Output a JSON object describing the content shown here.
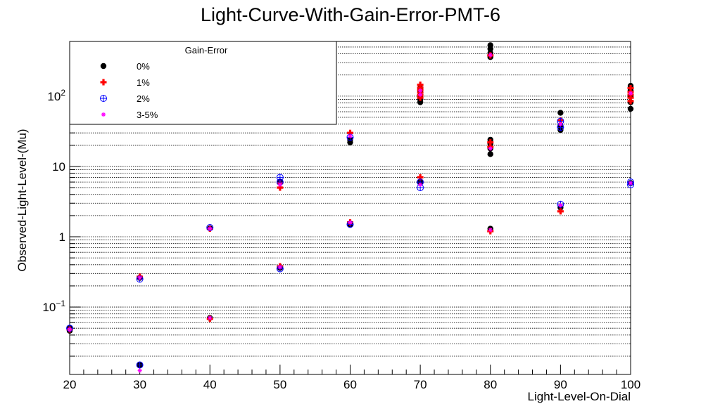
{
  "chart_data": {
    "type": "scatter",
    "title": "Light-Curve-With-Gain-Error-PMT-6",
    "xlabel": "Light-Level-On-Dial",
    "ylabel": "Observed-Light-Level-(Mu)",
    "xlim": [
      20,
      100
    ],
    "ylim": [
      0.011,
      600
    ],
    "yscale": "log",
    "grid": "horizontal-dotted",
    "x_ticks": [
      "20",
      "30",
      "40",
      "50",
      "60",
      "70",
      "80",
      "90",
      "100"
    ],
    "y_ticks": [
      {
        "value": 0.1,
        "base": "10",
        "exp": "−1"
      },
      {
        "value": 1,
        "text": "1"
      },
      {
        "value": 10,
        "text": "10"
      },
      {
        "value": 100,
        "base": "10",
        "exp": "2"
      }
    ],
    "legend": {
      "title": "Gain-Error",
      "position": "top-left",
      "entries": [
        "0%",
        "1%",
        "2%",
        "3-5%"
      ]
    },
    "series": [
      {
        "name": "0%",
        "color": "#000000",
        "marker": "filled-circle",
        "points": [
          {
            "x": 20,
            "y": 0.05
          },
          {
            "x": 20,
            "y": 0.046
          },
          {
            "x": 30,
            "y": 0.26
          },
          {
            "x": 30,
            "y": 0.015
          },
          {
            "x": 40,
            "y": 1.32
          },
          {
            "x": 40,
            "y": 0.07
          },
          {
            "x": 50,
            "y": 6.0
          },
          {
            "x": 50,
            "y": 0.36
          },
          {
            "x": 60,
            "y": 22
          },
          {
            "x": 60,
            "y": 24
          },
          {
            "x": 60,
            "y": 1.5
          },
          {
            "x": 70,
            "y": 82
          },
          {
            "x": 70,
            "y": 90
          },
          {
            "x": 70,
            "y": 100
          },
          {
            "x": 70,
            "y": 115
          },
          {
            "x": 70,
            "y": 130
          },
          {
            "x": 70,
            "y": 6.0
          },
          {
            "x": 80,
            "y": 530
          },
          {
            "x": 80,
            "y": 470
          },
          {
            "x": 80,
            "y": 410
          },
          {
            "x": 80,
            "y": 360
          },
          {
            "x": 80,
            "y": 24
          },
          {
            "x": 80,
            "y": 21
          },
          {
            "x": 80,
            "y": 18
          },
          {
            "x": 80,
            "y": 15
          },
          {
            "x": 80,
            "y": 1.3
          },
          {
            "x": 90,
            "y": 58
          },
          {
            "x": 90,
            "y": 38
          },
          {
            "x": 90,
            "y": 33
          },
          {
            "x": 90,
            "y": 2.6
          },
          {
            "x": 100,
            "y": 140
          },
          {
            "x": 100,
            "y": 120
          },
          {
            "x": 100,
            "y": 100
          },
          {
            "x": 100,
            "y": 82
          },
          {
            "x": 100,
            "y": 66
          },
          {
            "x": 100,
            "y": 5.8
          }
        ]
      },
      {
        "name": "1%",
        "color": "#ff0000",
        "marker": "plus",
        "points": [
          {
            "x": 20,
            "y": 0.048
          },
          {
            "x": 30,
            "y": 0.27
          },
          {
            "x": 40,
            "y": 1.3
          },
          {
            "x": 40,
            "y": 0.068
          },
          {
            "x": 50,
            "y": 5.0
          },
          {
            "x": 50,
            "y": 5.8
          },
          {
            "x": 50,
            "y": 0.38
          },
          {
            "x": 60,
            "y": 30
          },
          {
            "x": 60,
            "y": 1.6
          },
          {
            "x": 70,
            "y": 145
          },
          {
            "x": 70,
            "y": 132
          },
          {
            "x": 70,
            "y": 122
          },
          {
            "x": 70,
            "y": 112
          },
          {
            "x": 70,
            "y": 103
          },
          {
            "x": 70,
            "y": 95
          },
          {
            "x": 70,
            "y": 7.0
          },
          {
            "x": 80,
            "y": 380
          },
          {
            "x": 80,
            "y": 22
          },
          {
            "x": 80,
            "y": 19
          },
          {
            "x": 80,
            "y": 1.2
          },
          {
            "x": 90,
            "y": 2.3
          },
          {
            "x": 90,
            "y": 45
          },
          {
            "x": 100,
            "y": 130
          },
          {
            "x": 100,
            "y": 115
          },
          {
            "x": 100,
            "y": 105
          },
          {
            "x": 100,
            "y": 95
          },
          {
            "x": 100,
            "y": 85
          }
        ]
      },
      {
        "name": "2%",
        "color": "#0000ff",
        "marker": "circle-plus",
        "points": [
          {
            "x": 20,
            "y": 0.05
          },
          {
            "x": 30,
            "y": 0.25
          },
          {
            "x": 30,
            "y": 0.015
          },
          {
            "x": 40,
            "y": 1.35
          },
          {
            "x": 50,
            "y": 7.0
          },
          {
            "x": 50,
            "y": 6.0
          },
          {
            "x": 50,
            "y": 0.35
          },
          {
            "x": 60,
            "y": 26
          },
          {
            "x": 60,
            "y": 1.5
          },
          {
            "x": 70,
            "y": 5.0
          },
          {
            "x": 70,
            "y": 6.0
          },
          {
            "x": 90,
            "y": 44
          },
          {
            "x": 90,
            "y": 36
          },
          {
            "x": 90,
            "y": 2.9
          },
          {
            "x": 100,
            "y": 6.0
          },
          {
            "x": 100,
            "y": 5.5
          }
        ]
      },
      {
        "name": "3-5%",
        "color": "#ff00ff",
        "marker": "star",
        "points": [
          {
            "x": 20,
            "y": 0.048
          },
          {
            "x": 30,
            "y": 0.26
          },
          {
            "x": 30,
            "y": 0.0125
          },
          {
            "x": 40,
            "y": 1.3
          },
          {
            "x": 40,
            "y": 0.07
          },
          {
            "x": 50,
            "y": 5.5
          },
          {
            "x": 50,
            "y": 0.37
          },
          {
            "x": 60,
            "y": 27
          },
          {
            "x": 60,
            "y": 1.6
          },
          {
            "x": 70,
            "y": 120
          },
          {
            "x": 70,
            "y": 105
          },
          {
            "x": 70,
            "y": 5.5
          },
          {
            "x": 80,
            "y": 385
          },
          {
            "x": 80,
            "y": 18
          },
          {
            "x": 80,
            "y": 1.25
          },
          {
            "x": 90,
            "y": 40
          },
          {
            "x": 90,
            "y": 2.8
          },
          {
            "x": 100,
            "y": 110
          },
          {
            "x": 100,
            "y": 5.8
          }
        ]
      }
    ]
  }
}
